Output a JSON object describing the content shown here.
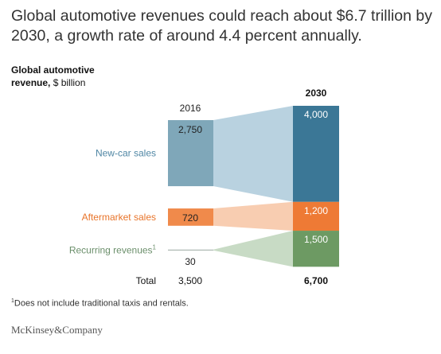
{
  "headline": "Global automotive revenues could reach about $6.7 trillion by 2030, a growth rate of around 4.4 percent annually.",
  "axis_title": {
    "bold": "Global automotive",
    "bold2": "revenue,",
    "unit": " $ billion"
  },
  "footnote": {
    "marker": "1",
    "text": "Does not include traditional taxis and rentals."
  },
  "brand": "McKinsey&Company",
  "colors": {
    "new_car_2016": "#7fa7b9",
    "new_car_2030": "#3b7796",
    "new_car_flow": "#b9d2e0",
    "aftermarket_2016": "#f08a4b",
    "aftermarket_2030": "#ee7a35",
    "aftermarket_flow": "#f8cdb1",
    "recurring_2016": "#6b8f6b",
    "recurring_2030": "#6d9a63",
    "recurring_flow": "#c8dbc5",
    "new_car_label": "#4f86a4",
    "aftermarket_label": "#e8742a",
    "recurring_label": "#6b8f6b"
  },
  "chart_data": {
    "type": "sankey",
    "years": [
      "2016",
      "2030"
    ],
    "categories": [
      {
        "name": "New-car sales",
        "values": [
          2750,
          4000
        ],
        "labels": [
          "2,750",
          "4,000"
        ],
        "superscript": ""
      },
      {
        "name": "Aftermarket sales",
        "values": [
          720,
          1200
        ],
        "labels": [
          "720",
          "1,200"
        ],
        "superscript": ""
      },
      {
        "name": "Recurring revenues",
        "values": [
          30,
          1500
        ],
        "labels": [
          "30",
          "1,500"
        ],
        "superscript": "1"
      }
    ],
    "total_label": "Total",
    "totals": [
      "3,500",
      "6,700"
    ]
  }
}
